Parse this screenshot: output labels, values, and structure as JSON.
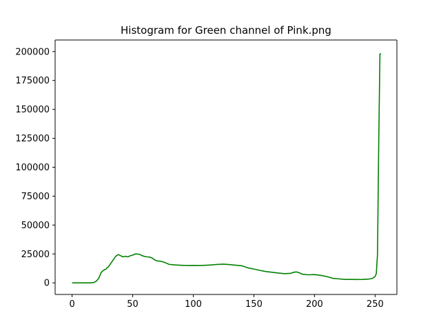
{
  "chart_data": {
    "type": "line",
    "title": "Histogram for Green channel of Pink.png",
    "xlabel": "",
    "ylabel": "",
    "xlim": [
      -14,
      268
    ],
    "ylim": [
      -10000,
      210000
    ],
    "xticks": [
      0,
      50,
      100,
      150,
      200,
      250
    ],
    "yticks": [
      0,
      25000,
      50000,
      75000,
      100000,
      125000,
      150000,
      175000,
      200000
    ],
    "grid": false,
    "series": [
      {
        "color": "#008000",
        "x": [
          0,
          5,
          10,
          15,
          18,
          20,
          22,
          24,
          26,
          28,
          30,
          32,
          34,
          36,
          38,
          40,
          42,
          44,
          46,
          48,
          50,
          52,
          54,
          56,
          58,
          60,
          62,
          64,
          66,
          68,
          70,
          72,
          74,
          76,
          78,
          80,
          85,
          90,
          95,
          100,
          105,
          110,
          115,
          120,
          125,
          130,
          135,
          140,
          145,
          150,
          155,
          160,
          165,
          170,
          175,
          180,
          183,
          185,
          188,
          190,
          195,
          200,
          205,
          210,
          215,
          220,
          225,
          230,
          235,
          240,
          244,
          246,
          248,
          250,
          251,
          252,
          253,
          254,
          255
        ],
        "y": [
          0,
          0,
          0,
          0,
          300,
          1500,
          4000,
          9000,
          11000,
          12000,
          14000,
          17000,
          20000,
          23000,
          24500,
          23500,
          22500,
          23000,
          22500,
          23500,
          24000,
          25000,
          25000,
          24500,
          23500,
          22800,
          22500,
          22300,
          21500,
          20000,
          19000,
          18800,
          18500,
          17800,
          17000,
          16000,
          15500,
          15200,
          15000,
          15100,
          15000,
          15200,
          15500,
          16000,
          16200,
          15800,
          15300,
          14800,
          13000,
          12000,
          10800,
          9800,
          9200,
          8500,
          8000,
          8200,
          9200,
          9500,
          8500,
          7500,
          7000,
          7200,
          6500,
          5500,
          4000,
          3500,
          3000,
          3000,
          2900,
          3000,
          3200,
          3500,
          4000,
          5500,
          8000,
          25000,
          120000,
          198000,
          198000
        ]
      }
    ]
  }
}
